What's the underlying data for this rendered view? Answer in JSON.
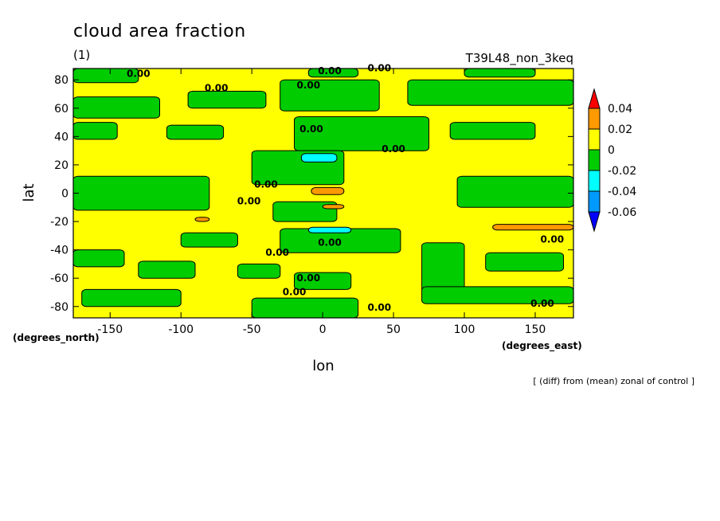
{
  "chart_data": {
    "type": "heatmap",
    "title": "cloud area fraction",
    "subtitle": "(1)",
    "run_label": "T39L48_non_3keq",
    "xlabel": "lon",
    "ylabel": "lat",
    "x_unit": "(degrees_east)",
    "y_unit": "(degrees_north)",
    "note": "[ (diff) from (mean) zonal of control ]",
    "xlim": [
      -176,
      177
    ],
    "ylim": [
      -88,
      88
    ],
    "x_ticks": [
      -150,
      -100,
      -50,
      0,
      50,
      100,
      150
    ],
    "y_ticks": [
      80,
      60,
      40,
      20,
      0,
      -20,
      -40,
      -60,
      -80
    ],
    "x_tick_labels": [
      "-150",
      "-100",
      "-50",
      "0",
      "50",
      "100",
      "150"
    ],
    "y_tick_labels": [
      "80",
      "60",
      "40",
      "20",
      "0",
      "-20",
      "-40",
      "-60",
      "-80"
    ],
    "colorbar": {
      "levels": [
        "0.04",
        "0.02",
        "0",
        "-0.02",
        "-0.04",
        "-0.06"
      ],
      "colors": [
        "#ff0000",
        "#ff9900",
        "#ffff00",
        "#00cc00",
        "#00ffff",
        "#0099ff",
        "#0000ff"
      ]
    },
    "contour_labels": [
      {
        "text": "0.00",
        "lon": -130,
        "lat": 82
      },
      {
        "text": "0.00",
        "lon": -75,
        "lat": 72
      },
      {
        "text": "0.00",
        "lon": -10,
        "lat": 74
      },
      {
        "text": "0.00",
        "lon": 5,
        "lat": 84
      },
      {
        "text": "0.00",
        "lon": 40,
        "lat": 86
      },
      {
        "text": "0.00",
        "lon": -8,
        "lat": 43
      },
      {
        "text": "0.00",
        "lon": 50,
        "lat": 29
      },
      {
        "text": "0.00",
        "lon": -40,
        "lat": 4
      },
      {
        "text": "0.00",
        "lon": -52,
        "lat": -8
      },
      {
        "text": "0.00",
        "lon": 5,
        "lat": -37
      },
      {
        "text": "0.00",
        "lon": -32,
        "lat": -44
      },
      {
        "text": "0.00",
        "lon": -10,
        "lat": -62
      },
      {
        "text": "0.00",
        "lon": -20,
        "lat": -72
      },
      {
        "text": "0.00",
        "lon": 40,
        "lat": -83
      },
      {
        "text": "0.00",
        "lon": 155,
        "lat": -80
      },
      {
        "text": "0.00",
        "lon": 162,
        "lat": -35
      }
    ],
    "regions": [
      {
        "level": "-0.02",
        "lon": [
          -176,
          -115
        ],
        "lat": [
          53,
          68
        ]
      },
      {
        "level": "-0.02",
        "lon": [
          -95,
          -40
        ],
        "lat": [
          60,
          72
        ]
      },
      {
        "level": "-0.02",
        "lon": [
          -30,
          40
        ],
        "lat": [
          58,
          80
        ]
      },
      {
        "level": "-0.02",
        "lon": [
          60,
          177
        ],
        "lat": [
          62,
          80
        ]
      },
      {
        "level": "-0.02",
        "lon": [
          -176,
          -130
        ],
        "lat": [
          78,
          88
        ]
      },
      {
        "level": "-0.02",
        "lon": [
          -10,
          25
        ],
        "lat": [
          82,
          88
        ]
      },
      {
        "level": "-0.02",
        "lon": [
          100,
          150
        ],
        "lat": [
          82,
          88
        ]
      },
      {
        "level": "-0.02",
        "lon": [
          -176,
          -145
        ],
        "lat": [
          38,
          50
        ]
      },
      {
        "level": "-0.02",
        "lon": [
          -110,
          -70
        ],
        "lat": [
          38,
          48
        ]
      },
      {
        "level": "-0.02",
        "lon": [
          -20,
          75
        ],
        "lat": [
          30,
          54
        ]
      },
      {
        "level": "-0.02",
        "lon": [
          90,
          150
        ],
        "lat": [
          38,
          50
        ]
      },
      {
        "level": "-0.02",
        "lon": [
          -176,
          -80
        ],
        "lat": [
          -12,
          12
        ]
      },
      {
        "level": "-0.02",
        "lon": [
          -50,
          15
        ],
        "lat": [
          6,
          30
        ]
      },
      {
        "level": "-0.02",
        "lon": [
          -35,
          10
        ],
        "lat": [
          -20,
          -6
        ]
      },
      {
        "level": "-0.02",
        "lon": [
          95,
          177
        ],
        "lat": [
          -10,
          12
        ]
      },
      {
        "level": "-0.02",
        "lon": [
          -30,
          55
        ],
        "lat": [
          -42,
          -25
        ]
      },
      {
        "level": "-0.02",
        "lon": [
          -176,
          -140
        ],
        "lat": [
          -52,
          -40
        ]
      },
      {
        "level": "-0.02",
        "lon": [
          -100,
          -60
        ],
        "lat": [
          -38,
          -28
        ]
      },
      {
        "level": "-0.02",
        "lon": [
          -130,
          -90
        ],
        "lat": [
          -60,
          -48
        ]
      },
      {
        "level": "-0.02",
        "lon": [
          70,
          100
        ],
        "lat": [
          -70,
          -35
        ]
      },
      {
        "level": "-0.02",
        "lon": [
          115,
          170
        ],
        "lat": [
          -55,
          -42
        ]
      },
      {
        "level": "-0.02",
        "lon": [
          -60,
          -30
        ],
        "lat": [
          -60,
          -50
        ]
      },
      {
        "level": "-0.02",
        "lon": [
          -20,
          20
        ],
        "lat": [
          -68,
          -56
        ]
      },
      {
        "level": "-0.02",
        "lon": [
          -170,
          -100
        ],
        "lat": [
          -80,
          -68
        ]
      },
      {
        "level": "-0.02",
        "lon": [
          -50,
          25
        ],
        "lat": [
          -88,
          -74
        ]
      },
      {
        "level": "-0.02",
        "lon": [
          70,
          177
        ],
        "lat": [
          -78,
          -66
        ]
      },
      {
        "level": "-0.04",
        "lon": [
          -15,
          10
        ],
        "lat": [
          22,
          28
        ]
      },
      {
        "level": "-0.04",
        "lon": [
          -10,
          20
        ],
        "lat": [
          -28,
          -24
        ]
      },
      {
        "level": "0.02",
        "lon": [
          -8,
          15
        ],
        "lat": [
          -1,
          4
        ]
      },
      {
        "level": "0.02",
        "lon": [
          0,
          15
        ],
        "lat": [
          -11,
          -8
        ]
      },
      {
        "level": "0.02",
        "lon": [
          120,
          177
        ],
        "lat": [
          -26,
          -22
        ]
      },
      {
        "level": "0.02",
        "lon": [
          -90,
          -80
        ],
        "lat": [
          -20,
          -17
        ]
      }
    ]
  }
}
